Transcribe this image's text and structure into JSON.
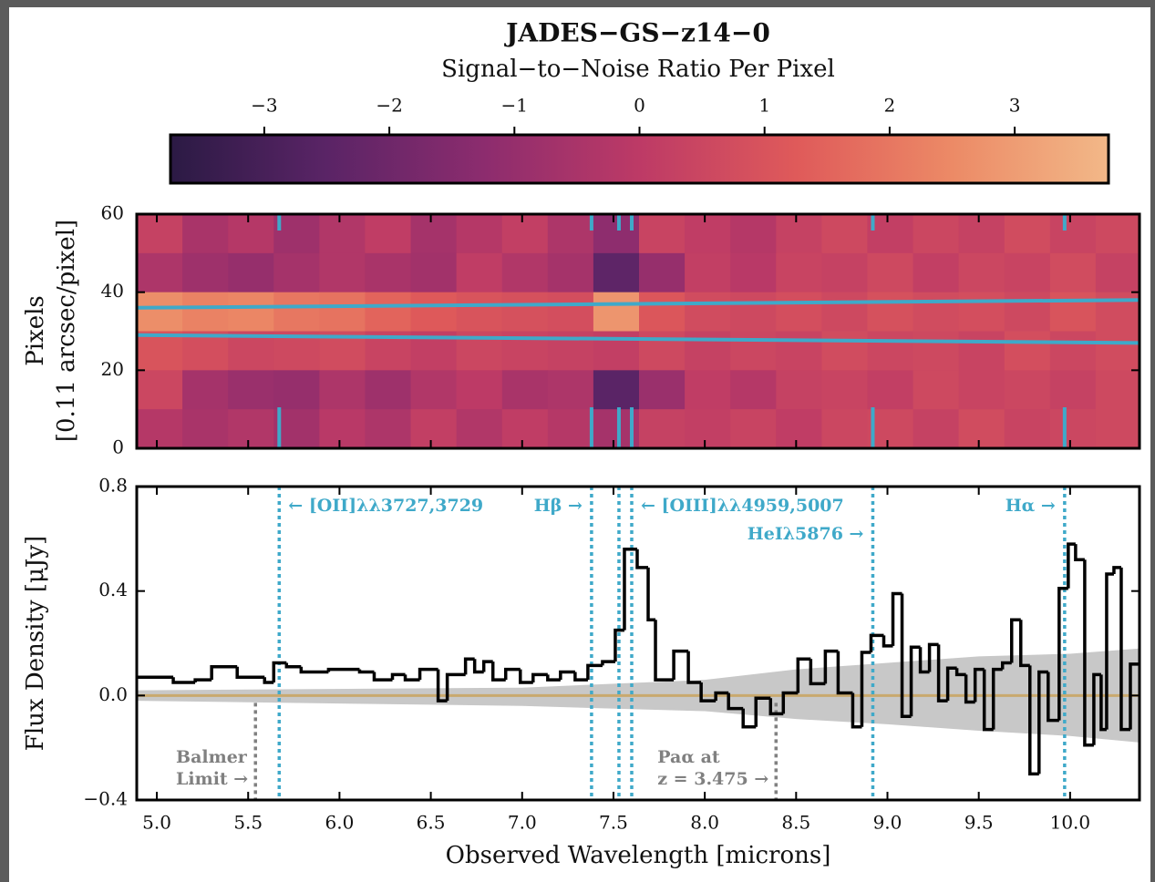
{
  "chart_data": {
    "type": "spectrum",
    "title": "JADES−GS−z14−0",
    "colorbar": {
      "label": "Signal−to−Noise Ratio Per Pixel",
      "clim": [
        -3.75,
        3.75
      ],
      "cticks": [
        {
          "value": -3,
          "label": "−3"
        },
        {
          "value": -2,
          "label": "−2"
        },
        {
          "value": -1,
          "label": "−1"
        },
        0,
        1,
        2,
        3
      ],
      "cmap": [
        "#2b1a44",
        "#5a2466",
        "#8c2c6e",
        "#bd3a66",
        "#df5a5a",
        "#ec8a66",
        "#f2b888"
      ]
    },
    "image": {
      "ylabel": [
        "Pixels",
        "[0.11 arcsec/pixel]"
      ],
      "ylim": [
        0,
        60
      ],
      "yticks": [
        0,
        20,
        40,
        60
      ],
      "x": [
        4.89,
        5.14,
        5.39,
        5.64,
        5.89,
        6.14,
        6.39,
        6.64,
        6.89,
        7.14,
        7.39,
        7.64,
        7.89,
        8.14,
        8.39,
        8.64,
        8.89,
        9.14,
        9.39,
        9.64,
        9.89,
        10.14
      ],
      "y": [
        50,
        40,
        30,
        20,
        10,
        0
      ],
      "values": [
        [
          0.3,
          -0.5,
          -0.2,
          -0.8,
          -0.3,
          0.1,
          -0.6,
          -0.2,
          0.2,
          -0.4,
          -1.2,
          0.4,
          0.1,
          -0.2,
          0.3,
          0.6,
          0.2,
          0.5,
          0.3,
          0.7,
          0.4,
          0.6
        ],
        [
          -0.4,
          -0.8,
          -1.0,
          -0.6,
          -0.3,
          -0.5,
          -0.7,
          0.1,
          -0.3,
          -0.6,
          -2.4,
          -1.0,
          0.2,
          -0.1,
          0.4,
          0.3,
          0.6,
          0.2,
          0.5,
          0.4,
          0.7,
          0.3
        ],
        [
          2.6,
          2.3,
          2.4,
          2.0,
          1.9,
          1.5,
          1.2,
          1.0,
          0.9,
          0.8,
          2.8,
          1.1,
          0.7,
          0.6,
          0.8,
          0.6,
          0.9,
          0.7,
          0.8,
          0.6,
          1.0,
          0.7
        ],
        [
          1.0,
          0.8,
          0.5,
          0.6,
          0.7,
          0.4,
          0.2,
          0.5,
          0.4,
          0.3,
          0.2,
          0.6,
          0.3,
          0.5,
          0.4,
          0.7,
          0.5,
          0.6,
          0.4,
          0.8,
          0.5,
          0.7
        ],
        [
          0.5,
          -0.6,
          -0.9,
          -1.0,
          -0.4,
          -0.8,
          -0.3,
          0.0,
          -0.5,
          -0.4,
          -2.5,
          -0.9,
          0.1,
          -0.2,
          0.3,
          0.4,
          0.2,
          0.6,
          0.4,
          0.5,
          0.3,
          0.6
        ],
        [
          -0.2,
          -0.5,
          -0.3,
          -0.7,
          -0.1,
          -0.4,
          0.2,
          -0.3,
          0.1,
          -0.2,
          -0.6,
          0.3,
          0.2,
          0.4,
          0.1,
          0.5,
          0.6,
          0.3,
          0.7,
          0.4,
          0.5,
          0.6
        ]
      ],
      "aperture": {
        "color": "#3fa9c9",
        "x": [
          4.89,
          10.38
        ],
        "upper": [
          36,
          38
        ],
        "lower": [
          29,
          27
        ]
      }
    },
    "spectrum": {
      "ylabel": "Flux Density [μJy]",
      "xlabel": "Observed Wavelength [microns]",
      "xlim": [
        4.89,
        10.38
      ],
      "xticks": [
        {
          "value": 5,
          "label": "5.0"
        },
        {
          "value": 5.5,
          "label": "5.5"
        },
        {
          "value": 6,
          "label": "6.0"
        },
        {
          "value": 6.5,
          "label": "6.5"
        },
        {
          "value": 7,
          "label": "7.0"
        },
        {
          "value": 7.5,
          "label": "7.5"
        },
        {
          "value": 8,
          "label": "8.0"
        },
        {
          "value": 8.5,
          "label": "8.5"
        },
        {
          "value": 9,
          "label": "9.0"
        },
        {
          "value": 9.5,
          "label": "9.5"
        },
        {
          "value": 10,
          "label": "10.0"
        }
      ],
      "ylim": [
        -0.4,
        0.8
      ],
      "yticks": [
        {
          "value": -0.4,
          "label": "−0.4"
        },
        {
          "value": 0,
          "label": "0.0"
        },
        0.4,
        0.8
      ],
      "color": "#000000",
      "x": [
        4.89,
        5.09,
        5.21,
        5.3,
        5.44,
        5.59,
        5.64,
        5.71,
        5.79,
        5.94,
        6.11,
        6.19,
        6.29,
        6.36,
        6.44,
        6.54,
        6.59,
        6.69,
        6.74,
        6.79,
        6.84,
        6.91,
        6.99,
        7.06,
        7.14,
        7.21,
        7.29,
        7.36,
        7.44,
        7.51,
        7.56,
        7.63,
        7.69,
        7.73,
        7.83,
        7.91,
        7.98,
        8.06,
        8.13,
        8.21,
        8.28,
        8.36,
        8.43,
        8.51,
        8.58,
        8.66,
        8.73,
        8.81,
        8.86,
        8.91,
        8.98,
        9.03,
        9.08,
        9.13,
        9.18,
        9.23,
        9.28,
        9.33,
        9.38,
        9.43,
        9.48,
        9.53,
        9.58,
        9.63,
        9.68,
        9.73,
        9.78,
        9.83,
        9.88,
        9.94,
        9.99,
        10.03,
        10.08,
        10.13,
        10.17,
        10.2,
        10.24,
        10.28,
        10.33
      ],
      "values": [
        0.07,
        0.05,
        0.06,
        0.11,
        0.07,
        0.05,
        0.125,
        0.11,
        0.09,
        0.1,
        0.09,
        0.06,
        0.08,
        0.06,
        0.1,
        -0.02,
        0.08,
        0.14,
        0.09,
        0.13,
        0.06,
        0.1,
        0.05,
        0.08,
        0.06,
        0.09,
        0.06,
        0.115,
        0.13,
        0.25,
        0.56,
        0.49,
        0.29,
        0.06,
        0.17,
        0.05,
        -0.02,
        0.01,
        -0.05,
        -0.12,
        -0.01,
        -0.07,
        0.01,
        0.14,
        0.045,
        0.17,
        0.01,
        -0.12,
        0.165,
        0.23,
        0.19,
        0.39,
        -0.08,
        0.185,
        0.09,
        0.195,
        -0.02,
        0.105,
        0.08,
        -0.025,
        0.1,
        -0.13,
        0.1,
        0.125,
        0.29,
        0.115,
        -0.3,
        0.09,
        -0.095,
        0.41,
        0.58,
        0.52,
        -0.19,
        0.08,
        -0.13,
        0.465,
        0.49,
        -0.13,
        0.12
      ],
      "error": {
        "color": "#c8c8c8",
        "x": [
          4.89,
          7.0,
          8.0,
          8.5,
          9.0,
          9.5,
          10.0,
          10.38
        ],
        "upper": [
          0.02,
          0.03,
          0.06,
          0.1,
          0.125,
          0.15,
          0.16,
          0.18
        ],
        "lower": [
          -0.02,
          -0.04,
          -0.06,
          -0.09,
          -0.11,
          -0.135,
          -0.155,
          -0.18
        ]
      },
      "model": {
        "value": 0,
        "color": "#c9a96e"
      }
    },
    "line_color": "#3fa9c9",
    "lines": [
      {
        "x": 5.67,
        "label": "← [OII]λλ3727,3729"
      },
      {
        "x": 7.38,
        "label": "Hβ →"
      },
      {
        "x": 7.53
      },
      {
        "x": 7.6,
        "label": "← [OIII]λλ4959,5007"
      },
      {
        "x": 8.92,
        "label": "HeIλ5876 →"
      },
      {
        "x": 9.97,
        "label": "Hα →"
      }
    ],
    "other_color": "#808080",
    "other_lines": [
      {
        "x": 5.54,
        "label": [
          "Balmer",
          "Limit →"
        ]
      },
      {
        "x": 8.39,
        "label": [
          "Paα at",
          "z = 3.475 →"
        ]
      }
    ]
  }
}
